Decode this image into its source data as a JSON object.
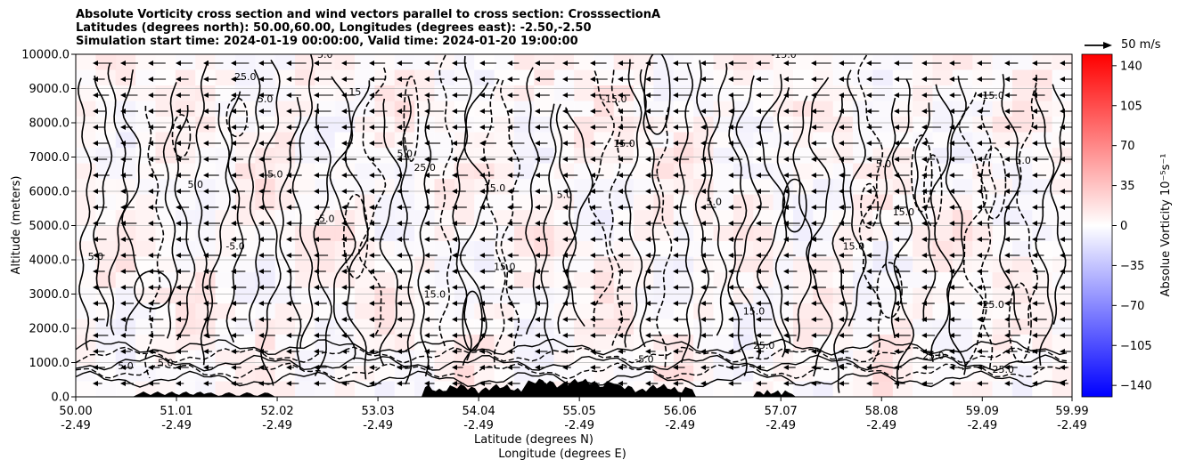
{
  "title_lines": [
    "Absolute Vorticity cross section and wind vectors parallel to cross section: CrosssectionA",
    "Latitudes (degrees north): 50.00,60.00, Longitudes (degrees east): -2.50,-2.50",
    "Simulation start time: 2024-01-19 00:00:00, Valid time: 2024-01-20 19:00:00"
  ],
  "reference_vector_label": "50 m/s",
  "chart_data": {
    "type": "heatmap",
    "title": "Absolute Vorticity cross section and wind vectors parallel to cross section: CrosssectionA",
    "ylabel": "Altitude (meters)",
    "xlabel_lines": [
      "Latitude (degrees N)",
      "Longitude (degrees E)"
    ],
    "xlim": [
      50.0,
      59.99
    ],
    "ylim": [
      0,
      10000
    ],
    "grid": "horizontal",
    "y_ticks": [
      {
        "value": 0,
        "label": "0.0"
      },
      {
        "value": 1000,
        "label": "1000.0"
      },
      {
        "value": 2000,
        "label": "2000.0"
      },
      {
        "value": 3000,
        "label": "3000.0"
      },
      {
        "value": 4000,
        "label": "4000.0"
      },
      {
        "value": 5000,
        "label": "5000.0"
      },
      {
        "value": 6000,
        "label": "6000.0"
      },
      {
        "value": 7000,
        "label": "7000.0"
      },
      {
        "value": 8000,
        "label": "8000.0"
      },
      {
        "value": 9000,
        "label": "9000.0"
      },
      {
        "value": 10000,
        "label": "10000.0"
      }
    ],
    "x_ticks": [
      {
        "value": 50.0,
        "label": "50.00",
        "label2": "-2.49"
      },
      {
        "value": 51.01,
        "label": "51.01",
        "label2": "-2.49"
      },
      {
        "value": 52.02,
        "label": "52.02",
        "label2": "-2.49"
      },
      {
        "value": 53.03,
        "label": "53.03",
        "label2": "-2.49"
      },
      {
        "value": 54.04,
        "label": "54.04",
        "label2": "-2.49"
      },
      {
        "value": 55.05,
        "label": "55.05",
        "label2": "-2.49"
      },
      {
        "value": 56.06,
        "label": "56.06",
        "label2": "-2.49"
      },
      {
        "value": 57.07,
        "label": "57.07",
        "label2": "-2.49"
      },
      {
        "value": 58.08,
        "label": "58.08",
        "label2": "-2.49"
      },
      {
        "value": 59.09,
        "label": "59.09",
        "label2": "-2.49"
      },
      {
        "value": 59.99,
        "label": "59.99",
        "label2": "-2.49"
      }
    ],
    "colorbar": {
      "label": "Absolue Vorticity 10⁻⁵s⁻¹",
      "range": [
        -150,
        150
      ],
      "colormap": "bwr",
      "ticks": [
        {
          "value": 140,
          "label": "140"
        },
        {
          "value": 105,
          "label": "105"
        },
        {
          "value": 70,
          "label": "70"
        },
        {
          "value": 35,
          "label": "35"
        },
        {
          "value": 0,
          "label": "0"
        },
        {
          "value": -35,
          "label": "−35"
        },
        {
          "value": -70,
          "label": "−70"
        },
        {
          "value": -105,
          "label": "−105"
        },
        {
          "value": -140,
          "label": "−140"
        }
      ]
    },
    "contour_levels": [
      -15.0,
      -5.0,
      5.0,
      15.0,
      25.0
    ],
    "contour_labels": [
      {
        "x": 51.7,
        "y": 9250,
        "text": "25.0"
      },
      {
        "x": 51.9,
        "y": 8600,
        "text": "5.0"
      },
      {
        "x": 52.5,
        "y": 9900,
        "text": "5.0"
      },
      {
        "x": 52.8,
        "y": 8800,
        "text": "15"
      },
      {
        "x": 51.2,
        "y": 6100,
        "text": "5.0"
      },
      {
        "x": 52.0,
        "y": 6400,
        "text": "5.0"
      },
      {
        "x": 52.5,
        "y": 5100,
        "text": "-5.0"
      },
      {
        "x": 51.6,
        "y": 4300,
        "text": "-5.0"
      },
      {
        "x": 50.2,
        "y": 4000,
        "text": "5.0"
      },
      {
        "x": 53.5,
        "y": 6600,
        "text": "25.0"
      },
      {
        "x": 53.3,
        "y": 7000,
        "text": "5.0"
      },
      {
        "x": 54.2,
        "y": 6000,
        "text": "15.0"
      },
      {
        "x": 54.3,
        "y": 3700,
        "text": "15.0"
      },
      {
        "x": 53.6,
        "y": 2900,
        "text": "15.0"
      },
      {
        "x": 54.9,
        "y": 5800,
        "text": "5.0"
      },
      {
        "x": 55.4,
        "y": 8600,
        "text": "-15.0"
      },
      {
        "x": 55.5,
        "y": 7300,
        "text": "15.0"
      },
      {
        "x": 56.4,
        "y": 5600,
        "text": "5.0"
      },
      {
        "x": 56.8,
        "y": 2400,
        "text": "15.0"
      },
      {
        "x": 57.1,
        "y": 9900,
        "text": "-15.0"
      },
      {
        "x": 58.3,
        "y": 5300,
        "text": "15.0"
      },
      {
        "x": 58.1,
        "y": 6700,
        "text": "5.0"
      },
      {
        "x": 59.5,
        "y": 6800,
        "text": "5.0"
      },
      {
        "x": 59.2,
        "y": 8700,
        "text": "15.0"
      },
      {
        "x": 59.2,
        "y": 2600,
        "text": "25.0"
      },
      {
        "x": 58.6,
        "y": 1100,
        "text": "25.0"
      },
      {
        "x": 59.3,
        "y": 700,
        "text": "25.0"
      },
      {
        "x": 50.5,
        "y": 800,
        "text": "5.0"
      },
      {
        "x": 50.9,
        "y": 900,
        "text": "5.0"
      },
      {
        "x": 56.9,
        "y": 1400,
        "text": "25.0"
      },
      {
        "x": 55.7,
        "y": 1000,
        "text": "-5.0"
      },
      {
        "x": 57.8,
        "y": 4300,
        "text": "15.0"
      }
    ]
  }
}
